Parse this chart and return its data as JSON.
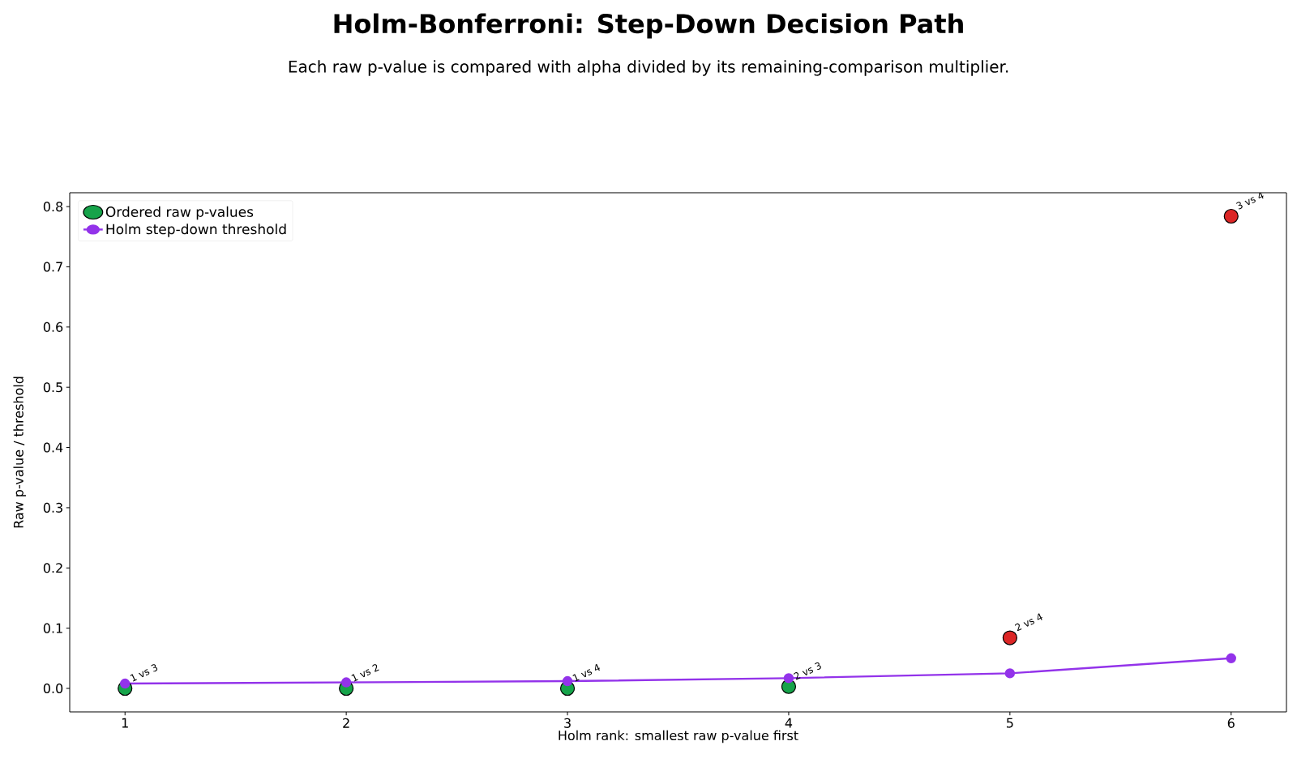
{
  "chart_data": {
    "type": "scatter",
    "title": "Holm-Bonferroni: Step-Down Decision Path",
    "subtitle": "Each raw p-value is compared with alpha divided by its remaining-comparison multiplier.",
    "xlabel": "Holm rank: smallest raw p-value first",
    "ylabel": "Raw p-value / threshold",
    "x": [
      1,
      2,
      3,
      4,
      5,
      6
    ],
    "series": [
      {
        "name": "Ordered raw p-values",
        "marker": "circle",
        "color": "#16a34a",
        "colors": [
          "#16a34a",
          "#16a34a",
          "#16a34a",
          "#16a34a",
          "#dc2626",
          "#dc2626"
        ],
        "values": [
          0.0,
          0.0,
          0.0,
          0.003,
          0.084,
          0.784
        ]
      },
      {
        "name": "Holm step-down threshold",
        "type": "line",
        "marker": "circle",
        "color": "#9333ea",
        "values": [
          0.008,
          0.01,
          0.012,
          0.017,
          0.025,
          0.05
        ]
      }
    ],
    "annotations": [
      {
        "text": "1 vs 3",
        "x": 1,
        "y": 0.0
      },
      {
        "text": "1 vs 2",
        "x": 2,
        "y": 0.0
      },
      {
        "text": "1 vs 4",
        "x": 3,
        "y": 0.0
      },
      {
        "text": "2 vs 3",
        "x": 4,
        "y": 0.003
      },
      {
        "text": "2 vs 4",
        "x": 5,
        "y": 0.084
      },
      {
        "text": "3 vs 4",
        "x": 6,
        "y": 0.784
      }
    ],
    "xlim": [
      0.75,
      6.25
    ],
    "ylim": [
      -0.039,
      0.823
    ],
    "xticks": [
      1,
      2,
      3,
      4,
      5,
      6
    ],
    "yticks": [
      {
        "value": 0,
        "label": "0.0"
      },
      {
        "value": 0.1,
        "label": "0.1"
      },
      {
        "value": 0.2,
        "label": "0.2"
      },
      {
        "value": 0.3,
        "label": "0.3"
      },
      {
        "value": 0.4,
        "label": "0.4"
      },
      {
        "value": 0.5,
        "label": "0.5"
      },
      {
        "value": 0.6,
        "label": "0.6"
      },
      {
        "value": 0.7,
        "label": "0.7"
      },
      {
        "value": 0.8,
        "label": "0.8"
      }
    ],
    "legend": "top left",
    "grid": false
  }
}
